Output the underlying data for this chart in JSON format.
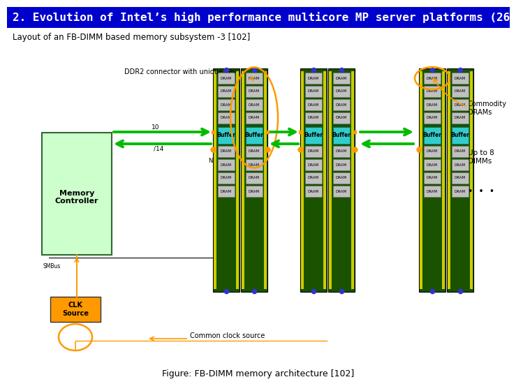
{
  "title": "2. Evolution of Intel’s high performance multicore MP server platforms (26)",
  "subtitle": "Layout of an FB-DIMM based memory subsystem -3 [102]",
  "caption": "Figure: FB-DIMM memory architecture [102]",
  "title_bg": "#0000cc",
  "title_fg": "#ffffff",
  "bg_color": "#ffffff",
  "green_bg": "#ccffcc",
  "dark_green": "#336633",
  "buffer_color": "#33cccc",
  "dram_color": "#c0c0c0",
  "orange_color": "#ff9900",
  "arrow_green": "#00bb00",
  "dimm_bg": "#1a5200",
  "yellow_stripe": "#cccc00"
}
